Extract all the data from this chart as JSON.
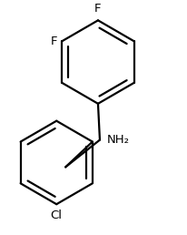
{
  "background_color": "#ffffff",
  "line_color": "#000000",
  "line_width": 1.6,
  "font_size_atoms": 9.5,
  "figsize": [
    2.06,
    2.58
  ],
  "dpi": 100,
  "atoms": {
    "F1_label": "F",
    "F2_label": "F",
    "NH2_label": "NH₂",
    "Cl_label": "Cl"
  }
}
